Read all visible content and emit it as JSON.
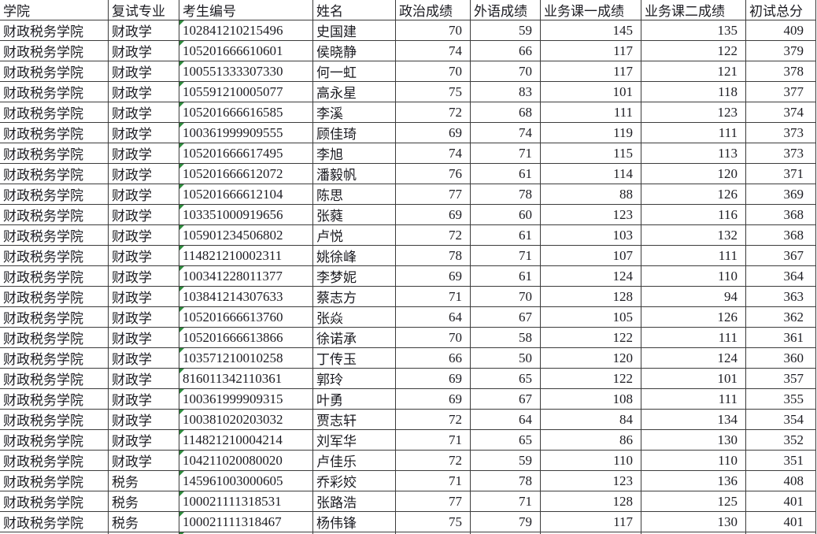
{
  "colors": {
    "grid_line": "#3c3c3c",
    "text": "#1c1c22",
    "indicator_green": "#2e8b3d",
    "cell_background": "#ffffff"
  },
  "table": {
    "columns": [
      {
        "key": "college",
        "label": "学院",
        "align": "left",
        "width": 138
      },
      {
        "key": "major",
        "label": "复试专业",
        "align": "left",
        "width": 90
      },
      {
        "key": "candidate_no",
        "label": "考生编号",
        "align": "left",
        "width": 170,
        "text_number_indicator": true
      },
      {
        "key": "name",
        "label": "姓名",
        "align": "left",
        "width": 105
      },
      {
        "key": "politics",
        "label": "政治成绩",
        "align": "right",
        "width": 95
      },
      {
        "key": "foreign_lang",
        "label": "外语成绩",
        "align": "right",
        "width": 89
      },
      {
        "key": "course1",
        "label": "业务课一成绩",
        "align": "right",
        "width": 128
      },
      {
        "key": "course2",
        "label": "业务课二成绩",
        "align": "right",
        "width": 133
      },
      {
        "key": "total",
        "label": "初试总分",
        "align": "right",
        "width": 89
      }
    ],
    "rows": [
      [
        "财政税务学院",
        "财政学",
        "102841210215496",
        "史国建",
        70,
        59,
        145,
        135,
        409
      ],
      [
        "财政税务学院",
        "财政学",
        "105201666610601",
        "侯晓静",
        74,
        66,
        117,
        122,
        379
      ],
      [
        "财政税务学院",
        "财政学",
        "100551333307330",
        "何一虹",
        70,
        70,
        117,
        121,
        378
      ],
      [
        "财政税务学院",
        "财政学",
        "105591210005077",
        "高永星",
        75,
        83,
        101,
        118,
        377
      ],
      [
        "财政税务学院",
        "财政学",
        "105201666616585",
        "李溪",
        72,
        68,
        111,
        123,
        374
      ],
      [
        "财政税务学院",
        "财政学",
        "100361999909555",
        "顾佳琦",
        69,
        74,
        119,
        111,
        373
      ],
      [
        "财政税务学院",
        "财政学",
        "105201666617495",
        "李旭",
        74,
        71,
        115,
        113,
        373
      ],
      [
        "财政税务学院",
        "财政学",
        "105201666612072",
        "潘毅帆",
        76,
        61,
        114,
        120,
        371
      ],
      [
        "财政税务学院",
        "财政学",
        "105201666612104",
        "陈思",
        77,
        78,
        88,
        126,
        369
      ],
      [
        "财政税务学院",
        "财政学",
        "103351000919656",
        "张蕤",
        69,
        60,
        123,
        116,
        368
      ],
      [
        "财政税务学院",
        "财政学",
        "105901234506802",
        "卢悦",
        72,
        61,
        103,
        132,
        368
      ],
      [
        "财政税务学院",
        "财政学",
        "114821210002311",
        "姚徐峰",
        78,
        71,
        107,
        111,
        367
      ],
      [
        "财政税务学院",
        "财政学",
        "100341228011377",
        "李梦妮",
        69,
        61,
        124,
        110,
        364
      ],
      [
        "财政税务学院",
        "财政学",
        "103841214307633",
        "蔡志方",
        71,
        70,
        128,
        94,
        363
      ],
      [
        "财政税务学院",
        "财政学",
        "105201666613760",
        "张焱",
        64,
        67,
        105,
        126,
        362
      ],
      [
        "财政税务学院",
        "财政学",
        "105201666613866",
        "徐诺承",
        70,
        58,
        122,
        111,
        361
      ],
      [
        "财政税务学院",
        "财政学",
        "103571210010258",
        "丁传玉",
        66,
        50,
        120,
        124,
        360
      ],
      [
        "财政税务学院",
        "财政学",
        "816011342110361",
        "郭玲",
        69,
        65,
        122,
        101,
        357
      ],
      [
        "财政税务学院",
        "财政学",
        "100361999909315",
        "叶勇",
        69,
        67,
        108,
        111,
        355
      ],
      [
        "财政税务学院",
        "财政学",
        "100381020203032",
        "贾志轩",
        72,
        64,
        84,
        134,
        354
      ],
      [
        "财政税务学院",
        "财政学",
        "114821210004214",
        "刘军华",
        71,
        65,
        86,
        130,
        352
      ],
      [
        "财政税务学院",
        "财政学",
        "104211020080020",
        "卢佳乐",
        72,
        59,
        110,
        110,
        351
      ],
      [
        "财政税务学院",
        "税务",
        "145961003000605",
        "乔彩姣",
        71,
        78,
        123,
        136,
        408
      ],
      [
        "财政税务学院",
        "税务",
        "100021111318531",
        "张路浩",
        77,
        71,
        128,
        125,
        401
      ],
      [
        "财政税务学院",
        "税务",
        "100021111318467",
        "杨伟锋",
        75,
        79,
        117,
        130,
        401
      ]
    ],
    "partial_next_row_visible": true
  }
}
